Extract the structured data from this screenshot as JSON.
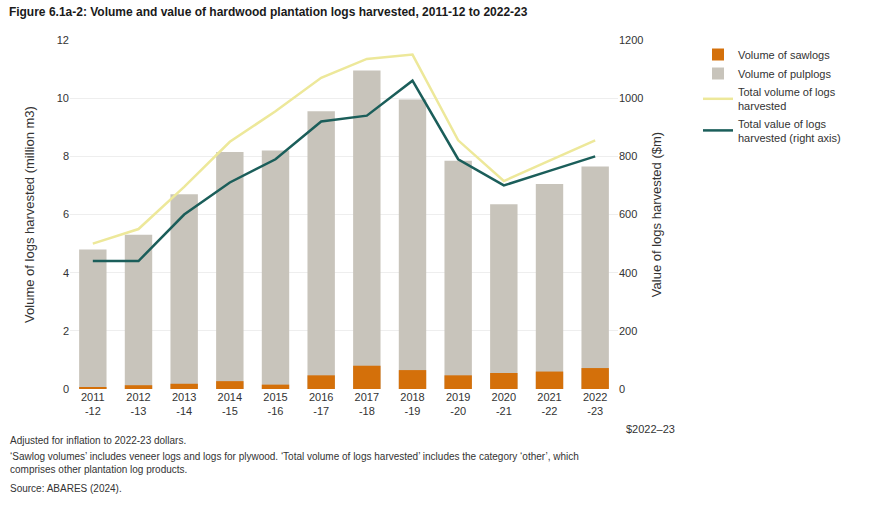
{
  "chart_data": {
    "type": "bar",
    "title": "Figure 6.1a-2: Volume and value of hardwood plantation logs harvested, 2011-12 to 2022-23",
    "categories": [
      "2011\n-12",
      "2012\n-13",
      "2013\n-14",
      "2014\n-15",
      "2015\n-16",
      "2016\n-17",
      "2017\n-18",
      "2018\n-19",
      "2019\n-20",
      "2020\n-21",
      "2021\n-22",
      "2022\n-23"
    ],
    "series": [
      {
        "name": "Volume of sawlogs",
        "type": "bar",
        "color": "#D4700A",
        "values": [
          0.05,
          0.13,
          0.18,
          0.27,
          0.15,
          0.47,
          0.8,
          0.65,
          0.47,
          0.55,
          0.6,
          0.72
        ]
      },
      {
        "name": "Volume of pulplogs",
        "type": "bar",
        "color": "#C8C4BB",
        "values": [
          4.8,
          5.3,
          6.7,
          8.15,
          8.2,
          9.55,
          10.95,
          9.95,
          7.85,
          6.35,
          7.05,
          7.65
        ]
      },
      {
        "name": "Total volume of logs\nharvested",
        "type": "line",
        "color": "#EDE89A",
        "values": [
          5.0,
          5.5,
          6.95,
          8.5,
          9.55,
          10.7,
          11.35,
          11.5,
          8.55,
          7.15,
          7.85,
          8.55
        ]
      },
      {
        "name": "Total value of logs\nharvested (right axis)",
        "type": "line",
        "color": "#1B5E5A",
        "axis": "y2",
        "values": [
          440,
          440,
          600,
          710,
          790,
          920,
          940,
          1060,
          790,
          700,
          750,
          800
        ]
      }
    ],
    "stacked": false,
    "ylabel": "Volume of logs harvested (million m3)",
    "y2label": "Value of logs harvested ($m)",
    "ylim": [
      0,
      12
    ],
    "yticks": [
      0,
      2,
      4,
      6,
      8,
      10,
      12
    ],
    "y2lim": [
      0,
      1200
    ],
    "y2ticks": [
      0,
      200,
      400,
      600,
      800,
      1000,
      1200
    ],
    "y2_note": "$2022–23",
    "footnotes": [
      "Adjusted for inflation to 2022-23 dollars.",
      "‘Sawlog volumes’ includes veneer logs and logs for plywood. ‘Total volume of logs harvested’ includes the category ‘other’, which\ncomprises other plantation log products.",
      "Source: ABARES (2024)."
    ],
    "grid": true,
    "legend": "right"
  }
}
